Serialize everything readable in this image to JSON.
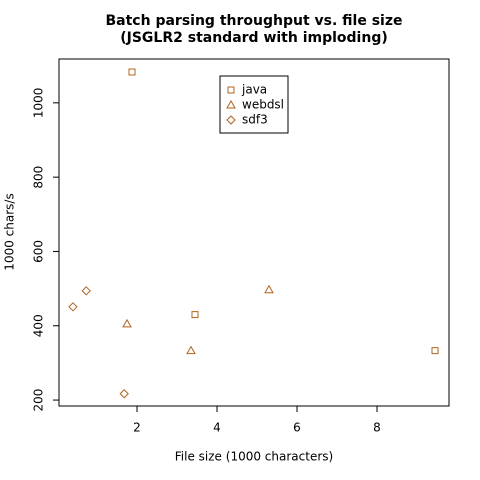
{
  "chart_data": {
    "type": "scatter",
    "title": "Batch parsing throughput vs. file size",
    "subtitle": "(JSGLR2 standard with imploding)",
    "x_label": "File size (1000 characters)",
    "y_label": "1000 chars/s",
    "xlim": [
      0.05,
      9.8
    ],
    "xticks": [
      2,
      4,
      6,
      8
    ],
    "ylim": [
      184,
      1118
    ],
    "yticks": [
      200,
      400,
      600,
      800,
      1000
    ],
    "legend": "top",
    "series": [
      {
        "name": "java",
        "color": "#b0641e",
        "marker": "square",
        "x": [
          1.875,
          3.45,
          9.45
        ],
        "values": [
          1083,
          430,
          333
        ]
      },
      {
        "name": "webdsl",
        "color": "#b0641e",
        "marker": "triangle",
        "x": [
          1.75,
          3.35,
          5.3
        ],
        "values": [
          405,
          333,
          497
        ]
      },
      {
        "name": "sdf3",
        "color": "#b0641e",
        "marker": "diamond",
        "x": [
          0.4,
          0.73,
          1.68
        ],
        "values": [
          451,
          494,
          217
        ]
      }
    ]
  }
}
